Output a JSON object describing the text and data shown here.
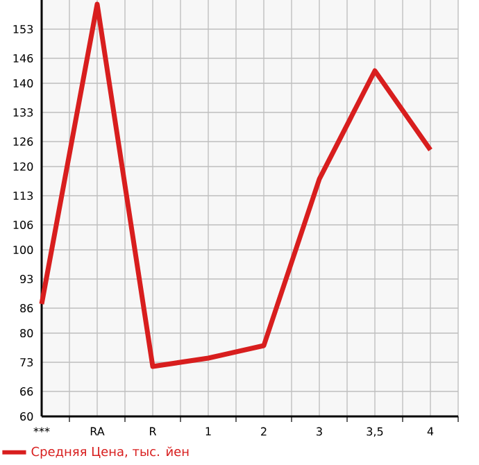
{
  "chart_data": {
    "type": "line",
    "categories": [
      "***",
      "RA",
      "R",
      "1",
      "2",
      "3",
      "3,5",
      "4"
    ],
    "series": [
      {
        "name": "Средняя Цена, тыс. йен",
        "color": "#d81e1e",
        "values": [
          87,
          159,
          72,
          74,
          77,
          117,
          143,
          124
        ]
      }
    ],
    "ylim": [
      60,
      160
    ],
    "yticks": [
      60,
      66,
      73,
      80,
      86,
      93,
      100,
      106,
      113,
      120,
      126,
      133,
      140,
      146,
      153
    ],
    "grid": true,
    "legend": "bottom",
    "marker": "none",
    "line_style": "solid"
  }
}
